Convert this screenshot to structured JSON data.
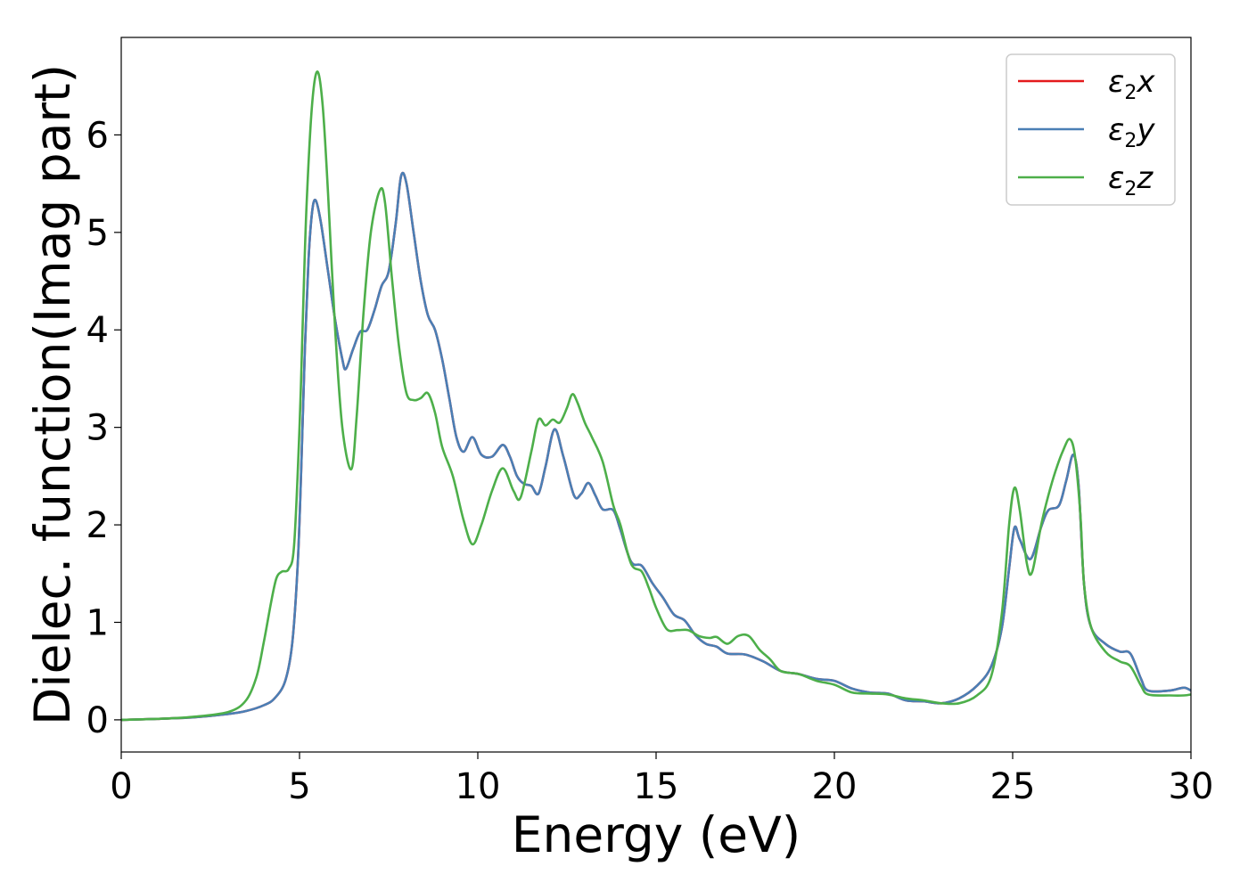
{
  "chart_data": {
    "type": "line",
    "title": "",
    "xlabel": "Energy (eV)",
    "ylabel": "Dielec. function(Imag part)",
    "xlim": [
      0,
      30
    ],
    "ylim": [
      -0.33,
      7.0
    ],
    "xticks": [
      0,
      5,
      10,
      15,
      20,
      25,
      30
    ],
    "yticks": [
      0,
      1,
      2,
      3,
      4,
      5,
      6
    ],
    "grid": false,
    "legend_position": "top-right",
    "series": [
      {
        "name": "ε₂x",
        "legend": {
          "base": "ε",
          "sub": "2",
          "var": "x"
        },
        "color": "#e41a1c",
        "points": [
          [
            0,
            0.0
          ],
          [
            1,
            0.01
          ],
          [
            2,
            0.025
          ],
          [
            3,
            0.06
          ],
          [
            3.5,
            0.09
          ],
          [
            4,
            0.15
          ],
          [
            4.3,
            0.22
          ],
          [
            4.6,
            0.4
          ],
          [
            4.8,
            0.8
          ],
          [
            4.95,
            1.6
          ],
          [
            5.05,
            2.6
          ],
          [
            5.15,
            3.8
          ],
          [
            5.25,
            4.7
          ],
          [
            5.35,
            5.2
          ],
          [
            5.45,
            5.33
          ],
          [
            5.6,
            5.1
          ],
          [
            5.8,
            4.6
          ],
          [
            6.0,
            4.1
          ],
          [
            6.2,
            3.7
          ],
          [
            6.3,
            3.6
          ],
          [
            6.5,
            3.8
          ],
          [
            6.7,
            3.98
          ],
          [
            6.9,
            4.0
          ],
          [
            7.1,
            4.2
          ],
          [
            7.3,
            4.45
          ],
          [
            7.5,
            4.6
          ],
          [
            7.7,
            5.1
          ],
          [
            7.85,
            5.58
          ],
          [
            8.0,
            5.5
          ],
          [
            8.2,
            5.0
          ],
          [
            8.4,
            4.5
          ],
          [
            8.6,
            4.15
          ],
          [
            8.8,
            4.0
          ],
          [
            9.0,
            3.7
          ],
          [
            9.2,
            3.3
          ],
          [
            9.4,
            2.9
          ],
          [
            9.6,
            2.75
          ],
          [
            9.85,
            2.9
          ],
          [
            10.1,
            2.72
          ],
          [
            10.4,
            2.7
          ],
          [
            10.7,
            2.82
          ],
          [
            10.9,
            2.7
          ],
          [
            11.1,
            2.5
          ],
          [
            11.3,
            2.42
          ],
          [
            11.5,
            2.4
          ],
          [
            11.7,
            2.32
          ],
          [
            11.9,
            2.6
          ],
          [
            12.15,
            2.98
          ],
          [
            12.4,
            2.7
          ],
          [
            12.7,
            2.3
          ],
          [
            12.9,
            2.32
          ],
          [
            13.1,
            2.43
          ],
          [
            13.3,
            2.3
          ],
          [
            13.5,
            2.16
          ],
          [
            13.8,
            2.15
          ],
          [
            14.0,
            1.95
          ],
          [
            14.3,
            1.62
          ],
          [
            14.6,
            1.58
          ],
          [
            14.9,
            1.4
          ],
          [
            15.2,
            1.25
          ],
          [
            15.5,
            1.08
          ],
          [
            15.8,
            1.02
          ],
          [
            16.1,
            0.87
          ],
          [
            16.4,
            0.78
          ],
          [
            16.7,
            0.75
          ],
          [
            17.0,
            0.68
          ],
          [
            17.5,
            0.67
          ],
          [
            18.0,
            0.6
          ],
          [
            18.5,
            0.5
          ],
          [
            19.0,
            0.47
          ],
          [
            19.5,
            0.42
          ],
          [
            20.0,
            0.4
          ],
          [
            20.5,
            0.32
          ],
          [
            21.0,
            0.28
          ],
          [
            21.5,
            0.27
          ],
          [
            22.0,
            0.2
          ],
          [
            22.5,
            0.19
          ],
          [
            23.0,
            0.17
          ],
          [
            23.5,
            0.22
          ],
          [
            24.0,
            0.35
          ],
          [
            24.4,
            0.55
          ],
          [
            24.7,
            0.95
          ],
          [
            24.9,
            1.55
          ],
          [
            25.05,
            1.97
          ],
          [
            25.2,
            1.85
          ],
          [
            25.5,
            1.65
          ],
          [
            25.8,
            1.98
          ],
          [
            26.0,
            2.15
          ],
          [
            26.3,
            2.2
          ],
          [
            26.5,
            2.45
          ],
          [
            26.7,
            2.72
          ],
          [
            26.85,
            2.4
          ],
          [
            27.0,
            1.4
          ],
          [
            27.2,
            0.95
          ],
          [
            27.6,
            0.78
          ],
          [
            28.0,
            0.7
          ],
          [
            28.3,
            0.68
          ],
          [
            28.6,
            0.42
          ],
          [
            28.8,
            0.3
          ],
          [
            29.4,
            0.3
          ],
          [
            29.8,
            0.33
          ],
          [
            30.0,
            0.3
          ]
        ]
      },
      {
        "name": "ε₂y",
        "legend": {
          "base": "ε",
          "sub": "2",
          "var": "y"
        },
        "color": "#4a7fb5",
        "points": [
          [
            0,
            0.0
          ],
          [
            1,
            0.01
          ],
          [
            2,
            0.025
          ],
          [
            3,
            0.06
          ],
          [
            3.5,
            0.09
          ],
          [
            4,
            0.15
          ],
          [
            4.3,
            0.22
          ],
          [
            4.6,
            0.4
          ],
          [
            4.8,
            0.8
          ],
          [
            4.95,
            1.6
          ],
          [
            5.05,
            2.6
          ],
          [
            5.15,
            3.8
          ],
          [
            5.25,
            4.7
          ],
          [
            5.35,
            5.2
          ],
          [
            5.45,
            5.33
          ],
          [
            5.6,
            5.1
          ],
          [
            5.8,
            4.6
          ],
          [
            6.0,
            4.1
          ],
          [
            6.2,
            3.7
          ],
          [
            6.3,
            3.6
          ],
          [
            6.5,
            3.8
          ],
          [
            6.7,
            3.98
          ],
          [
            6.9,
            4.0
          ],
          [
            7.1,
            4.2
          ],
          [
            7.3,
            4.45
          ],
          [
            7.5,
            4.6
          ],
          [
            7.7,
            5.1
          ],
          [
            7.85,
            5.58
          ],
          [
            8.0,
            5.5
          ],
          [
            8.2,
            5.0
          ],
          [
            8.4,
            4.5
          ],
          [
            8.6,
            4.15
          ],
          [
            8.8,
            4.0
          ],
          [
            9.0,
            3.7
          ],
          [
            9.2,
            3.3
          ],
          [
            9.4,
            2.9
          ],
          [
            9.6,
            2.75
          ],
          [
            9.85,
            2.9
          ],
          [
            10.1,
            2.72
          ],
          [
            10.4,
            2.7
          ],
          [
            10.7,
            2.82
          ],
          [
            10.9,
            2.7
          ],
          [
            11.1,
            2.5
          ],
          [
            11.3,
            2.42
          ],
          [
            11.5,
            2.4
          ],
          [
            11.7,
            2.32
          ],
          [
            11.9,
            2.6
          ],
          [
            12.15,
            2.98
          ],
          [
            12.4,
            2.7
          ],
          [
            12.7,
            2.3
          ],
          [
            12.9,
            2.32
          ],
          [
            13.1,
            2.43
          ],
          [
            13.3,
            2.3
          ],
          [
            13.5,
            2.16
          ],
          [
            13.8,
            2.15
          ],
          [
            14.0,
            1.95
          ],
          [
            14.3,
            1.62
          ],
          [
            14.6,
            1.58
          ],
          [
            14.9,
            1.4
          ],
          [
            15.2,
            1.25
          ],
          [
            15.5,
            1.08
          ],
          [
            15.8,
            1.02
          ],
          [
            16.1,
            0.87
          ],
          [
            16.4,
            0.78
          ],
          [
            16.7,
            0.75
          ],
          [
            17.0,
            0.68
          ],
          [
            17.5,
            0.67
          ],
          [
            18.0,
            0.6
          ],
          [
            18.5,
            0.5
          ],
          [
            19.0,
            0.47
          ],
          [
            19.5,
            0.42
          ],
          [
            20.0,
            0.4
          ],
          [
            20.5,
            0.32
          ],
          [
            21.0,
            0.28
          ],
          [
            21.5,
            0.27
          ],
          [
            22.0,
            0.2
          ],
          [
            22.5,
            0.19
          ],
          [
            23.0,
            0.17
          ],
          [
            23.5,
            0.22
          ],
          [
            24.0,
            0.35
          ],
          [
            24.4,
            0.55
          ],
          [
            24.7,
            0.95
          ],
          [
            24.9,
            1.55
          ],
          [
            25.05,
            1.97
          ],
          [
            25.2,
            1.85
          ],
          [
            25.5,
            1.65
          ],
          [
            25.8,
            1.98
          ],
          [
            26.0,
            2.15
          ],
          [
            26.3,
            2.2
          ],
          [
            26.5,
            2.45
          ],
          [
            26.7,
            2.72
          ],
          [
            26.85,
            2.4
          ],
          [
            27.0,
            1.4
          ],
          [
            27.2,
            0.95
          ],
          [
            27.6,
            0.78
          ],
          [
            28.0,
            0.7
          ],
          [
            28.3,
            0.68
          ],
          [
            28.6,
            0.42
          ],
          [
            28.8,
            0.3
          ],
          [
            29.4,
            0.3
          ],
          [
            29.8,
            0.33
          ],
          [
            30.0,
            0.3
          ]
        ]
      },
      {
        "name": "ε₂z",
        "legend": {
          "base": "ε",
          "sub": "2",
          "var": "z"
        },
        "color": "#4daf4a",
        "points": [
          [
            0,
            0.0
          ],
          [
            1,
            0.01
          ],
          [
            2,
            0.03
          ],
          [
            3,
            0.08
          ],
          [
            3.5,
            0.2
          ],
          [
            3.8,
            0.45
          ],
          [
            4.0,
            0.8
          ],
          [
            4.2,
            1.2
          ],
          [
            4.35,
            1.45
          ],
          [
            4.5,
            1.52
          ],
          [
            4.7,
            1.55
          ],
          [
            4.85,
            1.8
          ],
          [
            5.0,
            3.0
          ],
          [
            5.1,
            4.2
          ],
          [
            5.2,
            5.3
          ],
          [
            5.35,
            6.3
          ],
          [
            5.5,
            6.65
          ],
          [
            5.65,
            6.3
          ],
          [
            5.8,
            5.4
          ],
          [
            6.0,
            4.0
          ],
          [
            6.2,
            3.0
          ],
          [
            6.45,
            2.57
          ],
          [
            6.6,
            3.1
          ],
          [
            6.8,
            4.2
          ],
          [
            7.0,
            5.0
          ],
          [
            7.25,
            5.43
          ],
          [
            7.4,
            5.3
          ],
          [
            7.6,
            4.5
          ],
          [
            7.8,
            3.8
          ],
          [
            8.0,
            3.35
          ],
          [
            8.2,
            3.28
          ],
          [
            8.4,
            3.3
          ],
          [
            8.6,
            3.35
          ],
          [
            8.8,
            3.15
          ],
          [
            9.0,
            2.8
          ],
          [
            9.3,
            2.5
          ],
          [
            9.6,
            2.05
          ],
          [
            9.85,
            1.8
          ],
          [
            10.1,
            2.0
          ],
          [
            10.4,
            2.35
          ],
          [
            10.7,
            2.58
          ],
          [
            11.0,
            2.35
          ],
          [
            11.2,
            2.28
          ],
          [
            11.5,
            2.75
          ],
          [
            11.7,
            3.08
          ],
          [
            11.9,
            3.02
          ],
          [
            12.1,
            3.08
          ],
          [
            12.3,
            3.05
          ],
          [
            12.5,
            3.2
          ],
          [
            12.65,
            3.34
          ],
          [
            12.8,
            3.25
          ],
          [
            13.0,
            3.05
          ],
          [
            13.2,
            2.9
          ],
          [
            13.5,
            2.65
          ],
          [
            13.8,
            2.2
          ],
          [
            14.0,
            2.0
          ],
          [
            14.3,
            1.6
          ],
          [
            14.6,
            1.52
          ],
          [
            14.8,
            1.35
          ],
          [
            15.0,
            1.15
          ],
          [
            15.3,
            0.93
          ],
          [
            15.6,
            0.92
          ],
          [
            15.9,
            0.92
          ],
          [
            16.2,
            0.86
          ],
          [
            16.5,
            0.84
          ],
          [
            16.7,
            0.85
          ],
          [
            17.0,
            0.78
          ],
          [
            17.3,
            0.86
          ],
          [
            17.6,
            0.86
          ],
          [
            17.9,
            0.72
          ],
          [
            18.2,
            0.62
          ],
          [
            18.5,
            0.5
          ],
          [
            19.0,
            0.47
          ],
          [
            19.5,
            0.4
          ],
          [
            20.0,
            0.36
          ],
          [
            20.5,
            0.28
          ],
          [
            21.0,
            0.27
          ],
          [
            21.5,
            0.26
          ],
          [
            22.0,
            0.22
          ],
          [
            22.5,
            0.2
          ],
          [
            23.0,
            0.17
          ],
          [
            23.5,
            0.17
          ],
          [
            24.0,
            0.25
          ],
          [
            24.4,
            0.45
          ],
          [
            24.7,
            1.1
          ],
          [
            24.9,
            2.0
          ],
          [
            25.05,
            2.38
          ],
          [
            25.2,
            2.15
          ],
          [
            25.4,
            1.6
          ],
          [
            25.55,
            1.52
          ],
          [
            25.8,
            2.0
          ],
          [
            26.0,
            2.3
          ],
          [
            26.2,
            2.55
          ],
          [
            26.4,
            2.75
          ],
          [
            26.6,
            2.88
          ],
          [
            26.75,
            2.7
          ],
          [
            26.9,
            2.1
          ],
          [
            27.0,
            1.4
          ],
          [
            27.2,
            0.95
          ],
          [
            27.6,
            0.7
          ],
          [
            28.0,
            0.6
          ],
          [
            28.3,
            0.55
          ],
          [
            28.6,
            0.35
          ],
          [
            28.8,
            0.26
          ],
          [
            29.4,
            0.25
          ],
          [
            29.8,
            0.25
          ],
          [
            30.0,
            0.26
          ]
        ]
      }
    ]
  }
}
